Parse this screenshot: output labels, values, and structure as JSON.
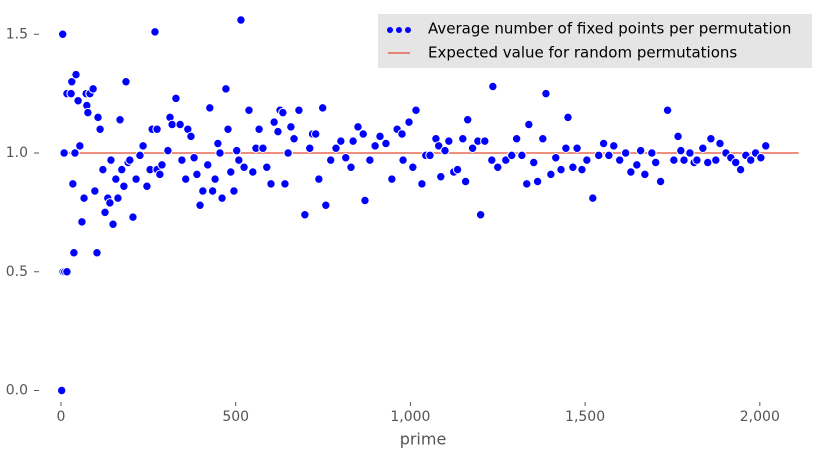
{
  "chart_data": {
    "type": "scatter",
    "x_label": "prime",
    "xlim": [
      -40,
      2115
    ],
    "ylim": [
      -0.04,
      1.56
    ],
    "xticks": [
      0,
      500,
      {
        "value": 1000,
        "label": "1,000"
      },
      {
        "value": 1500,
        "label": "1,500"
      },
      {
        "value": 2000,
        "label": "2,000"
      }
    ],
    "yticks": [
      {
        "value": 0,
        "label": "0.0"
      },
      {
        "value": 0.5,
        "label": "0.5"
      },
      {
        "value": 1,
        "label": "1.0"
      },
      {
        "value": 1.5,
        "label": "1.5"
      }
    ],
    "legend": "upper right",
    "series": [
      {
        "name": "Average number of fixed points per permutation",
        "color": "#0000ff",
        "style": "points",
        "x": [
          2,
          5,
          6,
          11,
          17,
          9,
          17,
          29,
          31,
          34,
          37,
          40,
          43,
          49,
          54,
          60,
          66,
          72,
          74,
          77,
          83,
          92,
          97,
          103,
          106,
          112,
          120,
          126,
          134,
          140,
          143,
          149,
          157,
          163,
          169,
          174,
          180,
          186,
          192,
          197,
          206,
          215,
          226,
          235,
          246,
          255,
          261,
          269,
          275,
          275,
          283,
          289,
          306,
          312,
          318,
          329,
          341,
          346,
          357,
          363,
          372,
          381,
          389,
          398,
          406,
          420,
          426,
          434,
          441,
          449,
          455,
          461,
          472,
          478,
          486,
          495,
          503,
          509,
          515,
          524,
          538,
          549,
          558,
          567,
          578,
          589,
          601,
          610,
          621,
          627,
          635,
          641,
          650,
          658,
          667,
          681,
          698,
          712,
          720,
          729,
          738,
          749,
          758,
          772,
          787,
          801,
          815,
          830,
          836,
          850,
          865,
          870,
          884,
          899,
          913,
          930,
          947,
          962,
          976,
          979,
          996,
          1007,
          1016,
          1033,
          1044,
          1056,
          1073,
          1081,
          1087,
          1099,
          1110,
          1124,
          1135,
          1150,
          1158,
          1164,
          1178,
          1193,
          1201,
          1213,
          1233,
          1236,
          1250,
          1273,
          1290,
          1304,
          1319,
          1333,
          1339,
          1353,
          1364,
          1379,
          1388,
          1402,
          1416,
          1431,
          1445,
          1451,
          1465,
          1477,
          1491,
          1505,
          1522,
          1539,
          1553,
          1568,
          1582,
          1599,
          1616,
          1631,
          1648,
          1659,
          1671,
          1691,
          1702,
          1716,
          1736,
          1754,
          1766,
          1774,
          1783,
          1800,
          1812,
          1820,
          1837,
          1851,
          1860,
          1874,
          1886,
          1903,
          1917,
          1931,
          1945,
          1960,
          1974,
          1988,
          2003,
          2017
        ],
        "values": [
          0.0,
          1.5,
          0.5,
          0.5,
          0.5,
          1.0,
          1.25,
          1.25,
          1.3,
          0.87,
          0.58,
          1.0,
          1.33,
          1.22,
          1.03,
          0.71,
          0.81,
          1.25,
          1.2,
          1.17,
          1.25,
          1.27,
          0.84,
          0.58,
          1.15,
          1.1,
          0.93,
          0.75,
          0.81,
          0.79,
          0.97,
          0.7,
          0.89,
          0.81,
          1.14,
          0.93,
          0.86,
          1.3,
          0.96,
          0.97,
          0.73,
          0.89,
          0.99,
          1.03,
          0.86,
          0.93,
          1.1,
          1.51,
          1.1,
          0.93,
          0.91,
          0.95,
          1.01,
          1.15,
          1.12,
          1.23,
          1.12,
          0.97,
          0.89,
          1.1,
          1.07,
          0.98,
          0.91,
          0.78,
          0.84,
          0.95,
          1.19,
          0.84,
          0.89,
          1.04,
          1.0,
          0.81,
          1.27,
          1.1,
          0.92,
          0.84,
          1.01,
          0.97,
          1.56,
          0.94,
          1.18,
          0.92,
          1.02,
          1.1,
          1.02,
          0.94,
          0.87,
          1.13,
          1.09,
          1.18,
          1.17,
          0.87,
          1.0,
          1.11,
          1.06,
          1.18,
          0.74,
          1.02,
          1.08,
          1.08,
          0.89,
          1.19,
          0.78,
          0.97,
          1.02,
          1.05,
          0.98,
          0.94,
          1.05,
          1.11,
          1.08,
          0.8,
          0.97,
          1.03,
          1.07,
          1.04,
          0.89,
          1.1,
          1.08,
          0.97,
          1.13,
          0.94,
          1.18,
          0.87,
          0.99,
          0.99,
          1.06,
          1.03,
          0.9,
          1.01,
          1.05,
          0.92,
          0.93,
          1.06,
          0.88,
          1.14,
          1.02,
          1.05,
          0.74,
          1.05,
          0.97,
          1.28,
          0.94,
          0.97,
          0.99,
          1.06,
          0.99,
          0.87,
          1.12,
          0.96,
          0.88,
          1.06,
          1.25,
          0.91,
          0.98,
          0.93,
          1.02,
          1.15,
          0.94,
          1.02,
          0.93,
          0.97,
          0.81,
          0.99,
          1.04,
          0.99,
          1.03,
          0.97,
          1.0,
          0.92,
          0.95,
          1.01,
          0.91,
          1.0,
          0.96,
          0.88,
          1.18,
          0.97,
          1.07,
          1.01,
          0.97,
          1.0,
          0.96,
          0.97,
          1.02,
          0.96,
          1.06,
          0.97,
          1.04,
          1.0,
          0.98,
          0.96,
          0.93,
          0.99,
          0.97,
          1.0,
          0.98,
          1.03
        ]
      },
      {
        "name": "Expected value for random permutations",
        "color": "#e24a33",
        "style": "line",
        "x": [
          2,
          2111
        ],
        "values": [
          1,
          1
        ]
      }
    ]
  }
}
